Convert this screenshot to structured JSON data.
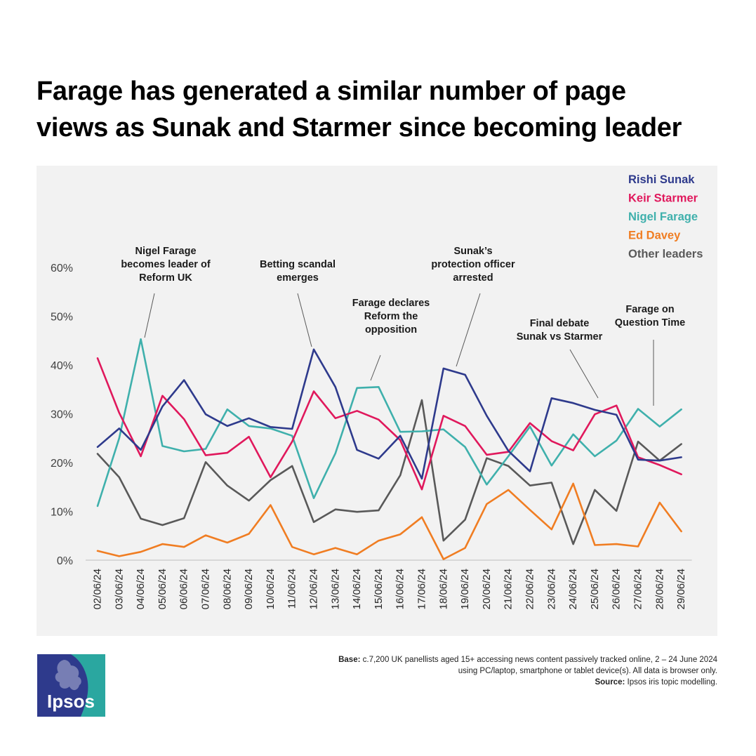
{
  "title": {
    "line1": "Farage has generated a similar number of page",
    "line2": "views as Sunak and Starmer since becoming leader"
  },
  "chart_data": {
    "type": "line",
    "x": [
      "02/06/24",
      "03/06/24",
      "04/06/24",
      "05/06/24",
      "06/06/24",
      "07/06/24",
      "08/06/24",
      "09/06/24",
      "10/06/24",
      "11/06/24",
      "12/06/24",
      "13/06/24",
      "14/06/24",
      "15/06/24",
      "16/06/24",
      "17/06/24",
      "18/06/24",
      "19/06/24",
      "20/06/24",
      "21/06/24",
      "22/06/24",
      "23/06/24",
      "24/06/24",
      "25/06/24",
      "26/06/24",
      "27/06/24",
      "28/06/24",
      "29/06/24"
    ],
    "y_ticks": [
      "0%",
      "10%",
      "20%",
      "30%",
      "40%",
      "50%",
      "60%"
    ],
    "ylim": [
      0,
      60
    ],
    "series": [
      {
        "name": "Rishi Sunak",
        "color": "#2e3a8c",
        "values": [
          23.2,
          27.0,
          22.6,
          31.5,
          36.9,
          29.9,
          27.5,
          29.1,
          27.3,
          26.9,
          43.2,
          35.5,
          22.6,
          20.8,
          25.5,
          16.7,
          39.3,
          38.0,
          29.6,
          22.4,
          18.2,
          33.2,
          32.2,
          30.8,
          29.8,
          20.6,
          20.4,
          21.1
        ]
      },
      {
        "name": "Keir Starmer",
        "color": "#e0185c",
        "values": [
          41.4,
          30.2,
          21.3,
          33.7,
          28.9,
          21.5,
          22.0,
          25.3,
          17.0,
          24.3,
          34.6,
          29.1,
          30.6,
          28.8,
          24.6,
          14.5,
          29.6,
          27.5,
          21.6,
          22.2,
          28.1,
          24.4,
          22.5,
          29.9,
          31.7,
          21.1,
          19.5,
          17.6
        ]
      },
      {
        "name": "Nigel Farage",
        "color": "#3fb0ac",
        "values": [
          11.1,
          25.0,
          45.3,
          23.4,
          22.3,
          22.8,
          30.9,
          27.5,
          27.0,
          25.5,
          12.7,
          21.9,
          35.3,
          35.5,
          26.3,
          26.4,
          26.8,
          23.2,
          15.5,
          21.3,
          27.4,
          19.4,
          25.8,
          21.3,
          24.5,
          31.0,
          27.4,
          30.9
        ]
      },
      {
        "name": "Ed Davey",
        "color": "#f07d22",
        "values": [
          1.9,
          0.8,
          1.7,
          3.3,
          2.7,
          5.1,
          3.6,
          5.4,
          11.3,
          2.7,
          1.2,
          2.5,
          1.2,
          4.0,
          5.3,
          8.8,
          0.2,
          2.5,
          11.5,
          14.4,
          10.3,
          6.3,
          15.7,
          3.1,
          3.3,
          2.8,
          11.8,
          5.9
        ]
      },
      {
        "name": "Other leaders",
        "color": "#595959",
        "values": [
          21.8,
          17.0,
          8.5,
          7.2,
          8.6,
          20.1,
          15.3,
          12.2,
          16.4,
          19.3,
          7.8,
          10.4,
          9.9,
          10.2,
          17.4,
          32.8,
          4.0,
          8.3,
          20.9,
          19.3,
          15.3,
          15.9,
          3.3,
          14.4,
          10.1,
          24.3,
          20.4,
          23.8
        ]
      }
    ],
    "legend_position": "top-right",
    "grid": false,
    "annotations": [
      {
        "lines": [
          "Nigel Farage",
          "becomes leader of",
          "Reform UK"
        ],
        "x_index": 2,
        "value": 45.3
      },
      {
        "lines": [
          "Betting scandal",
          "emerges"
        ],
        "x_index": 10,
        "value": 43.2
      },
      {
        "lines": [
          "Farage declares",
          "Reform the",
          "opposition"
        ],
        "x_index": 13,
        "value": 35.5
      },
      {
        "lines": [
          "Sunak’s",
          "protection officer",
          "arrested"
        ],
        "x_index": 16,
        "value": 39.3
      },
      {
        "lines": [
          "Final debate",
          "Sunak vs Starmer"
        ],
        "x_index": 24,
        "value": 31.7
      },
      {
        "lines": [
          "Farage on",
          "Question Time"
        ],
        "x_index": 25,
        "value": 31.0
      }
    ]
  },
  "footer": {
    "base_label": "Base:",
    "base_text": "c.7,200 UK panellists aged 15+ accessing news content passively tracked online, 2 – 24 June 2024",
    "base_text_2": "using PC/laptop, smartphone or tablet device(s).  All data is browser only.",
    "source_label": "Source:",
    "source_text": "Ipsos iris topic modelling."
  },
  "logo": {
    "text": "Ipsos",
    "colors": [
      "#2e3a8c",
      "#2aa7a0"
    ]
  }
}
